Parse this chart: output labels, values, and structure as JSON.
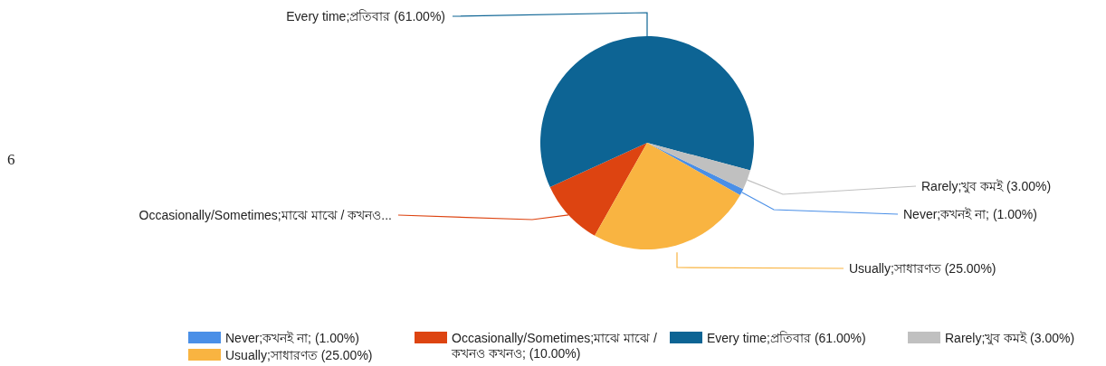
{
  "chart_data": {
    "type": "pie",
    "categories": [
      "Never;কখনই না; (1.00%)",
      "Occasionally/Sometimes;মাঝে মাঝে / কখনও কখনও; (10.00%)",
      "Every time;প্রতিবার (61.00%)",
      "Rarely;খুব কমই (3.00%)",
      "Usually;সাধারণত (25.00%)"
    ],
    "values": [
      1,
      10,
      61,
      3,
      25
    ],
    "colors": [
      "#4a8fe7",
      "#dd4411",
      "#0d6494",
      "#c0c0c0",
      "#f9b441"
    ],
    "value_labels": [
      "Never;কখনই না; (1.00%)",
      "Occasionally/Sometimes;মাঝে মাঝে / কখনও...",
      "Every time;প্রতিবার (61.00%)",
      "Rarely;খুব কমই (3.00%)",
      "Usually;সাধারণত (25.00%)"
    ],
    "annotations": [
      "6"
    ],
    "legend": "bottom"
  }
}
